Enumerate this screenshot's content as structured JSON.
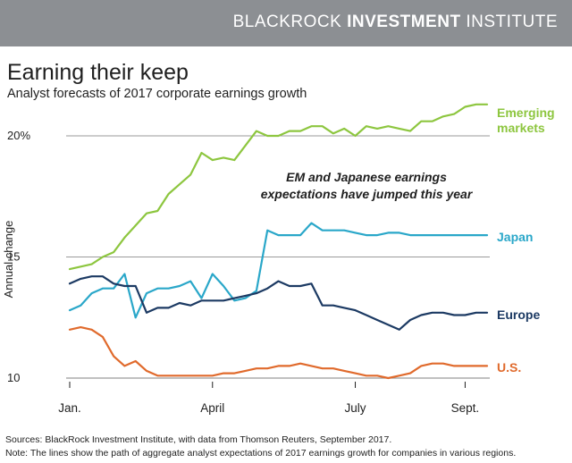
{
  "banner": {
    "brand_light": "BLACKROCK",
    "brand_bold": "INVESTMENT",
    "brand_tail": "INSTITUTE",
    "background": "#8c8f93"
  },
  "title": "Earning their keep",
  "subtitle": "Analyst forecasts of 2017 corporate earnings growth",
  "footer": {
    "sources": "Sources: BlackRock Investment Institute, with data from Thomson Reuters, September 2017.",
    "note": "Note: The lines show the path of aggregate analyst expectations of 2017 earnings growth for companies in various regions."
  },
  "chart_data": {
    "type": "line",
    "title": "Earning their keep",
    "subtitle": "Analyst forecasts of 2017 corporate earnings growth",
    "ylabel": "Annual change",
    "ylim": [
      10,
      20
    ],
    "yticks": [
      {
        "value": 10,
        "label": "10"
      },
      {
        "value": 15,
        "label": "15"
      },
      {
        "value": 20,
        "label": "20%"
      }
    ],
    "xticks": [
      {
        "week": 0,
        "label": "Jan."
      },
      {
        "week": 13,
        "label": "April"
      },
      {
        "week": 26,
        "label": "July"
      },
      {
        "week": 36,
        "label": "Sept."
      }
    ],
    "annotation": {
      "line1": "EM and Japanese earnings",
      "line2": "expectations have jumped this year"
    },
    "grid": "horizontal",
    "series": [
      {
        "name_lines": [
          "Emerging",
          "markets"
        ],
        "color": "#8dc63f",
        "x": [
          0,
          1,
          2,
          3,
          4,
          5,
          6,
          7,
          8,
          9,
          10,
          11,
          12,
          13,
          14,
          15,
          16,
          17,
          18,
          19,
          20,
          21,
          22,
          23,
          24,
          25,
          26,
          27,
          28,
          29,
          30,
          31,
          32,
          33,
          34,
          35,
          36,
          37,
          38
        ],
        "values": [
          14.5,
          14.6,
          14.7,
          15.0,
          15.2,
          15.8,
          16.3,
          16.8,
          16.9,
          17.6,
          18.0,
          18.4,
          19.3,
          19.0,
          19.1,
          19.0,
          19.6,
          20.2,
          20.0,
          20.0,
          20.2,
          20.2,
          20.4,
          20.4,
          20.1,
          20.3,
          20.0,
          20.4,
          20.3,
          20.4,
          20.3,
          20.2,
          20.6,
          20.6,
          20.8,
          20.9,
          21.2,
          21.3,
          21.3
        ]
      },
      {
        "name_lines": [
          "Japan"
        ],
        "color": "#2aa7c9",
        "x": [
          0,
          1,
          2,
          3,
          4,
          5,
          6,
          7,
          8,
          9,
          10,
          11,
          12,
          13,
          14,
          15,
          16,
          17,
          18,
          19,
          20,
          21,
          22,
          23,
          24,
          25,
          26,
          27,
          28,
          29,
          30,
          31,
          32,
          33,
          34,
          35,
          36,
          37,
          38
        ],
        "values": [
          12.8,
          13.0,
          13.5,
          13.7,
          13.7,
          14.3,
          12.5,
          13.5,
          13.7,
          13.7,
          13.8,
          14.0,
          13.3,
          14.3,
          13.8,
          13.2,
          13.3,
          13.6,
          16.1,
          15.9,
          15.9,
          15.9,
          16.4,
          16.1,
          16.1,
          16.1,
          16.0,
          15.9,
          15.9,
          16.0,
          16.0,
          15.9,
          15.9,
          15.9,
          15.9,
          15.9,
          15.9,
          15.9,
          15.9
        ]
      },
      {
        "name_lines": [
          "Europe"
        ],
        "color": "#1c3a63",
        "x": [
          0,
          1,
          2,
          3,
          4,
          5,
          6,
          7,
          8,
          9,
          10,
          11,
          12,
          13,
          14,
          15,
          16,
          17,
          18,
          19,
          20,
          21,
          22,
          23,
          24,
          25,
          26,
          27,
          28,
          29,
          30,
          31,
          32,
          33,
          34,
          35,
          36,
          37,
          38
        ],
        "values": [
          13.9,
          14.1,
          14.2,
          14.2,
          13.9,
          13.8,
          13.8,
          12.7,
          12.9,
          12.9,
          13.1,
          13.0,
          13.2,
          13.2,
          13.2,
          13.3,
          13.4,
          13.5,
          13.7,
          14.0,
          13.8,
          13.8,
          13.9,
          13.0,
          13.0,
          12.9,
          12.8,
          12.6,
          12.4,
          12.2,
          12.0,
          12.4,
          12.6,
          12.7,
          12.7,
          12.6,
          12.6,
          12.7,
          12.7
        ]
      },
      {
        "name_lines": [
          "U.S."
        ],
        "color": "#e06a2c",
        "x": [
          0,
          1,
          2,
          3,
          4,
          5,
          6,
          7,
          8,
          9,
          10,
          11,
          12,
          13,
          14,
          15,
          16,
          17,
          18,
          19,
          20,
          21,
          22,
          23,
          24,
          25,
          26,
          27,
          28,
          29,
          30,
          31,
          32,
          33,
          34,
          35,
          36,
          37,
          38
        ],
        "values": [
          12.0,
          12.1,
          12.0,
          11.7,
          10.9,
          10.5,
          10.7,
          10.3,
          10.1,
          10.1,
          10.1,
          10.1,
          10.1,
          10.1,
          10.2,
          10.2,
          10.3,
          10.4,
          10.4,
          10.5,
          10.5,
          10.6,
          10.5,
          10.4,
          10.4,
          10.3,
          10.2,
          10.1,
          10.1,
          10.0,
          10.1,
          10.2,
          10.5,
          10.6,
          10.6,
          10.5,
          10.5,
          10.5,
          10.5
        ]
      }
    ]
  }
}
